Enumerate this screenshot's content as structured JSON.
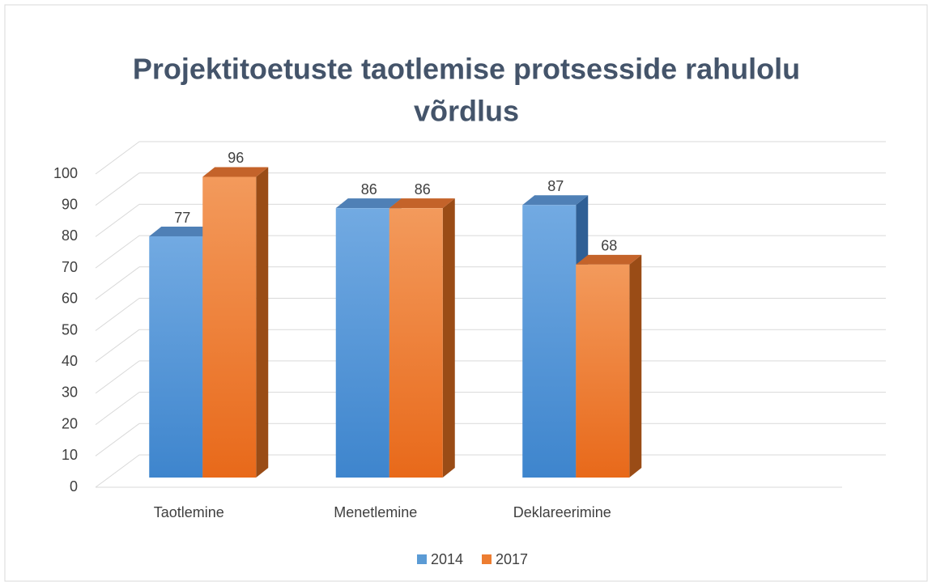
{
  "chart_data": {
    "type": "bar3d",
    "title": "Projektitoetuste taotlemise protsesside rahulolu võrdlus",
    "categories": [
      "Taotlemine",
      "Menetlemine",
      "Deklareerimine",
      null
    ],
    "series": [
      {
        "name": "2014",
        "color": "#5b9bd5",
        "values": [
          77,
          86,
          87,
          null
        ]
      },
      {
        "name": "2017",
        "color": "#ed7d31",
        "values": [
          96,
          86,
          68,
          null
        ]
      }
    ],
    "ylim": [
      0,
      100
    ],
    "yticks": [
      0,
      10,
      20,
      30,
      40,
      50,
      60,
      70,
      80,
      90,
      100
    ],
    "grid": true,
    "legend": "bottom"
  }
}
